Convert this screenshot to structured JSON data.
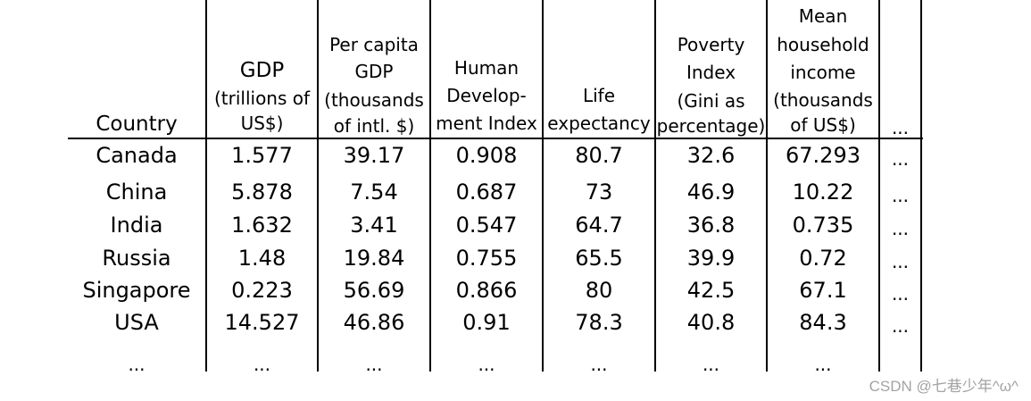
{
  "header": {
    "country": [
      "Country"
    ],
    "gdp": [
      "GDP",
      "(trillions of",
      "US$)"
    ],
    "per_capita_gdp": [
      "Per capita",
      "GDP",
      "(thousands",
      "of intl. $)"
    ],
    "hdi": [
      "Human",
      "Develop-",
      "ment Index"
    ],
    "life_expectancy": [
      "Life",
      "expectancy"
    ],
    "poverty_index": [
      "Poverty",
      "Index",
      "(Gini as",
      "percentage)"
    ],
    "mean_household_income": [
      "Mean",
      "household",
      "income",
      "(thousands",
      "of US$)"
    ],
    "more": "..."
  },
  "rows": [
    {
      "country": "Canada",
      "gdp": "1.577",
      "per_capita_gdp": "39.17",
      "hdi": "0.908",
      "life_expectancy": "80.7",
      "poverty_index": "32.6",
      "mean_household_income": "67.293",
      "more": "..."
    },
    {
      "country": "China",
      "gdp": "5.878",
      "per_capita_gdp": "7.54",
      "hdi": "0.687",
      "life_expectancy": "73",
      "poverty_index": "46.9",
      "mean_household_income": "10.22",
      "more": "..."
    },
    {
      "country": "India",
      "gdp": "1.632",
      "per_capita_gdp": "3.41",
      "hdi": "0.547",
      "life_expectancy": "64.7",
      "poverty_index": "36.8",
      "mean_household_income": "0.735",
      "more": "..."
    },
    {
      "country": "Russia",
      "gdp": "1.48",
      "per_capita_gdp": "19.84",
      "hdi": "0.755",
      "life_expectancy": "65.5",
      "poverty_index": "39.9",
      "mean_household_income": "0.72",
      "more": "..."
    },
    {
      "country": "Singapore",
      "gdp": "0.223",
      "per_capita_gdp": "56.69",
      "hdi": "0.866",
      "life_expectancy": "80",
      "poverty_index": "42.5",
      "mean_household_income": "67.1",
      "more": "..."
    },
    {
      "country": "USA",
      "gdp": "14.527",
      "per_capita_gdp": "46.86",
      "hdi": "0.91",
      "life_expectancy": "78.3",
      "poverty_index": "40.8",
      "mean_household_income": "84.3",
      "more": "..."
    },
    {
      "country": "...",
      "gdp": "...",
      "per_capita_gdp": "...",
      "hdi": "...",
      "life_expectancy": "...",
      "poverty_index": "...",
      "mean_household_income": "...",
      "more": ""
    }
  ],
  "watermark": "CSDN @七巷少年^ω^"
}
